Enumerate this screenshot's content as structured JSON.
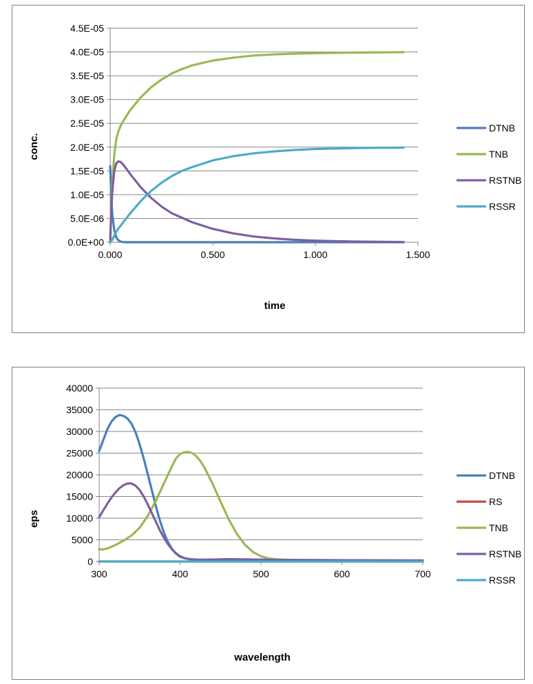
{
  "chart_data": [
    {
      "type": "line",
      "title": "",
      "xlabel": "time",
      "ylabel": "conc.",
      "xlim": [
        0,
        1.5
      ],
      "ylim": [
        0,
        4.5e-05
      ],
      "x_ticks": [
        0,
        0.5,
        1.0,
        1.5
      ],
      "x_tick_labels": [
        "0.000",
        "0.500",
        "1.000",
        "1.500"
      ],
      "y_ticks": [
        0,
        5e-06,
        1e-05,
        1.5e-05,
        2e-05,
        2.5e-05,
        3e-05,
        3.5e-05,
        4e-05,
        4.5e-05
      ],
      "y_tick_labels": [
        "0.0E+00",
        "5.0E-06",
        "1.0E-05",
        "1.5E-05",
        "2.0E-05",
        "2.5E-05",
        "3.0E-05",
        "3.5E-05",
        "4.0E-05",
        "4.5E-05"
      ],
      "grid": true,
      "legend_position": "right",
      "series": [
        {
          "name": "DTNB",
          "color": "#4a7ebb",
          "x": [
            0,
            0.005,
            0.01,
            0.02,
            0.03,
            0.04,
            0.05,
            0.06,
            0.08,
            0.1,
            0.2,
            0.5,
            1.0,
            1.43
          ],
          "y": [
            1.6e-05,
            1e-05,
            6e-06,
            2.5e-06,
            1e-06,
            4e-07,
            1.5e-07,
            5e-08,
            0,
            0,
            0,
            0,
            0,
            0
          ]
        },
        {
          "name": "TNB",
          "color": "#98b954",
          "x": [
            0,
            0.005,
            0.01,
            0.02,
            0.03,
            0.04,
            0.05,
            0.06,
            0.08,
            0.1,
            0.15,
            0.2,
            0.25,
            0.3,
            0.35,
            0.4,
            0.5,
            0.6,
            0.7,
            0.8,
            0.9,
            1.0,
            1.1,
            1.2,
            1.3,
            1.43
          ],
          "y": [
            0,
            6.5e-06,
            1.2e-05,
            1.85e-05,
            2.17e-05,
            2.33e-05,
            2.44e-05,
            2.52e-05,
            2.66e-05,
            2.79e-05,
            3.05e-05,
            3.26e-05,
            3.42e-05,
            3.55e-05,
            3.64e-05,
            3.72e-05,
            3.82e-05,
            3.88e-05,
            3.925e-05,
            3.95e-05,
            3.965e-05,
            3.975e-05,
            3.982e-05,
            3.988e-05,
            3.992e-05,
            3.995e-05
          ]
        },
        {
          "name": "RSTNB",
          "color": "#7d5fa0",
          "x": [
            0,
            0.005,
            0.01,
            0.02,
            0.03,
            0.04,
            0.05,
            0.06,
            0.08,
            0.1,
            0.15,
            0.2,
            0.25,
            0.3,
            0.4,
            0.5,
            0.6,
            0.7,
            0.8,
            0.9,
            1.0,
            1.1,
            1.2,
            1.3,
            1.43
          ],
          "y": [
            0,
            6e-06,
            1.05e-05,
            1.5e-05,
            1.66e-05,
            1.7e-05,
            1.69e-05,
            1.65e-05,
            1.54e-05,
            1.42e-05,
            1.15e-05,
            9.3e-06,
            7.5e-06,
            6.1e-06,
            4.2e-06,
            2.8e-06,
            1.85e-06,
            1.2e-06,
            8e-07,
            5e-07,
            3.3e-07,
            2.2e-07,
            1.5e-07,
            1e-07,
            5e-08
          ]
        },
        {
          "name": "RSSR",
          "color": "#4bacc6",
          "x": [
            0,
            0.01,
            0.02,
            0.03,
            0.04,
            0.05,
            0.06,
            0.08,
            0.1,
            0.15,
            0.2,
            0.25,
            0.3,
            0.35,
            0.4,
            0.5,
            0.6,
            0.7,
            0.8,
            0.9,
            1.0,
            1.1,
            1.2,
            1.3,
            1.43
          ],
          "y": [
            0,
            5e-07,
            1.4e-06,
            2.2e-06,
            2.9e-06,
            3.4e-06,
            4e-06,
            5.1e-06,
            6.2e-06,
            8.7e-06,
            1.08e-05,
            1.25e-05,
            1.39e-05,
            1.5e-05,
            1.58e-05,
            1.72e-05,
            1.81e-05,
            1.87e-05,
            1.91e-05,
            1.94e-05,
            1.96e-05,
            1.97e-05,
            1.98e-05,
            1.985e-05,
            1.99e-05
          ]
        }
      ]
    },
    {
      "type": "line",
      "title": "",
      "xlabel": "wavelength",
      "ylabel": "eps",
      "xlim": [
        300,
        700
      ],
      "ylim": [
        0,
        40000
      ],
      "x_ticks": [
        300,
        400,
        500,
        600,
        700
      ],
      "x_tick_labels": [
        "300",
        "400",
        "500",
        "600",
        "700"
      ],
      "y_ticks": [
        0,
        5000,
        10000,
        15000,
        20000,
        25000,
        30000,
        35000,
        40000
      ],
      "y_tick_labels": [
        "0",
        "5000",
        "10000",
        "15000",
        "20000",
        "25000",
        "30000",
        "35000",
        "40000"
      ],
      "grid": true,
      "legend_position": "right",
      "series": [
        {
          "name": "DTNB",
          "color": "#4a7ebb",
          "x": [
            300,
            305,
            310,
            315,
            320,
            325,
            330,
            335,
            340,
            345,
            350,
            355,
            360,
            365,
            370,
            375,
            380,
            385,
            390,
            395,
            400,
            405,
            410,
            415,
            420,
            430,
            440,
            450,
            460,
            470,
            480,
            500,
            550,
            600,
            650,
            700
          ],
          "y": [
            25500,
            28000,
            30500,
            32200,
            33300,
            33800,
            33600,
            33000,
            31800,
            29800,
            27000,
            23800,
            20200,
            16500,
            12800,
            9500,
            6700,
            4500,
            2900,
            1800,
            1100,
            800,
            600,
            500,
            450,
            420,
            450,
            500,
            550,
            520,
            500,
            450,
            350,
            300,
            250,
            250
          ]
        },
        {
          "name": "RS",
          "color": "#be4b48",
          "x": [
            300,
            700
          ],
          "y": [
            0,
            0
          ]
        },
        {
          "name": "TNB",
          "color": "#98b954",
          "x": [
            300,
            305,
            310,
            320,
            330,
            340,
            350,
            360,
            370,
            380,
            390,
            395,
            400,
            405,
            410,
            415,
            420,
            425,
            430,
            440,
            450,
            460,
            470,
            480,
            490,
            500,
            510,
            520,
            530,
            540,
            550,
            600,
            650,
            700
          ],
          "y": [
            2800,
            2800,
            3000,
            3800,
            4800,
            6000,
            7800,
            10500,
            14000,
            18000,
            22000,
            23800,
            24800,
            25200,
            25300,
            25000,
            24300,
            23200,
            21700,
            18000,
            13800,
            9800,
            6400,
            3900,
            2200,
            1200,
            700,
            500,
            400,
            350,
            300,
            300,
            250,
            200
          ]
        },
        {
          "name": "RSTNB",
          "color": "#7d5fa0",
          "x": [
            300,
            305,
            310,
            315,
            320,
            325,
            330,
            335,
            340,
            345,
            350,
            355,
            360,
            365,
            370,
            375,
            380,
            385,
            390,
            395,
            400,
            405,
            410,
            415,
            420,
            430,
            440,
            460,
            480,
            500,
            550,
            600,
            650,
            700
          ],
          "y": [
            10200,
            11800,
            13300,
            14700,
            15900,
            16900,
            17600,
            18000,
            18000,
            17500,
            16500,
            15000,
            13200,
            11200,
            9200,
            7200,
            5500,
            4000,
            2800,
            1900,
            1200,
            800,
            600,
            500,
            450,
            420,
            450,
            500,
            450,
            400,
            350,
            300,
            250,
            200
          ]
        },
        {
          "name": "RSSR",
          "color": "#4bacc6",
          "x": [
            300,
            700
          ],
          "y": [
            0,
            0
          ]
        }
      ]
    }
  ]
}
